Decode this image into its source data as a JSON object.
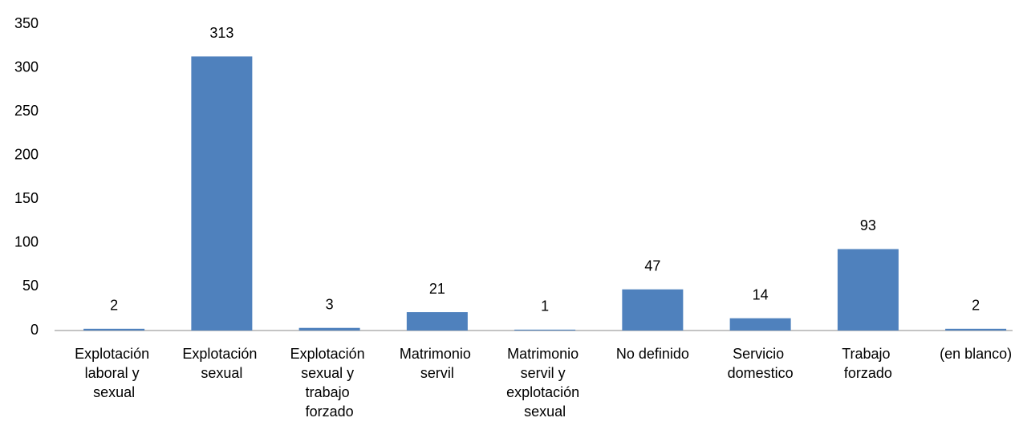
{
  "chart_data": {
    "type": "bar",
    "categories": [
      "Explotación laboral y sexual",
      "Explotación sexual",
      "Explotación sexual y trabajo forzado",
      "Matrimonio servil",
      "Matrimonio servil y explotación sexual",
      "No definido",
      "Servicio domestico",
      "Trabajo forzado",
      "(en blanco)"
    ],
    "values": [
      2,
      313,
      3,
      21,
      1,
      47,
      14,
      93,
      2
    ],
    "color": "#4f81bd",
    "ylim": [
      0,
      350
    ],
    "yticks": [
      0,
      50,
      100,
      150,
      200,
      250,
      300,
      350
    ],
    "grid": false
  }
}
